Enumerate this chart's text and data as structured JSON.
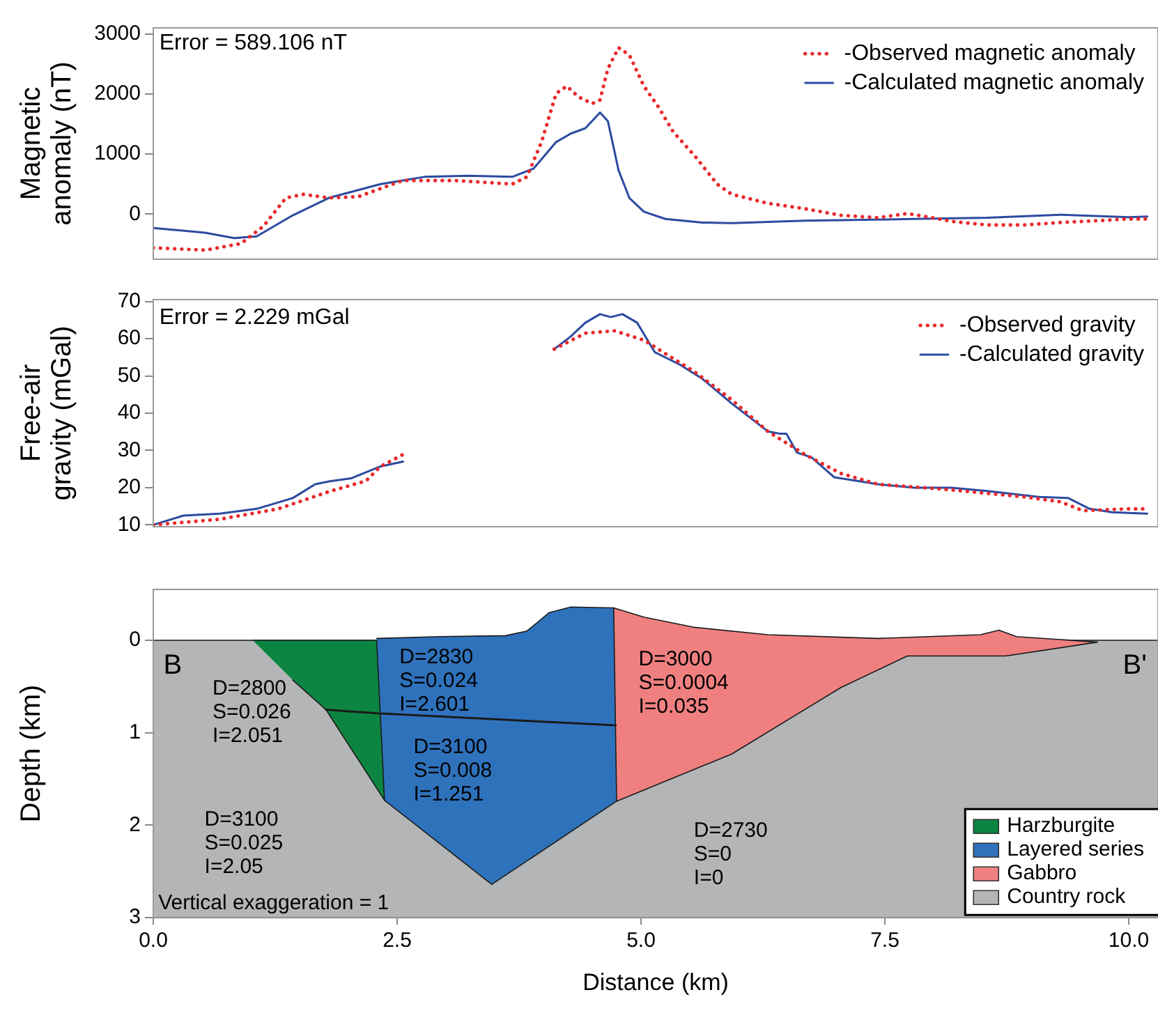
{
  "chart_data": [
    {
      "type": "line",
      "ylabel": "Magnetic anomaly (nT)",
      "xlim": [
        0,
        10.3
      ],
      "ylim": [
        -750,
        3100
      ],
      "yticks": [
        0,
        1000,
        2000,
        3000
      ],
      "tick_labels": "y",
      "grid": false,
      "legend": "top right",
      "annotations": [
        "Error = 589.106 nT"
      ],
      "series": [
        {
          "name": "-Observed magnetic anomaly",
          "color": "#e8292b",
          "line_style": "dotted",
          "x": [
            0,
            0.53,
            0.9,
            1.13,
            1.36,
            1.54,
            1.8,
            2.1,
            2.56,
            3.08,
            3.68,
            3.83,
            3.98,
            4.13,
            4.24,
            4.36,
            4.5,
            4.58,
            4.66,
            4.77,
            4.88,
            5.03,
            5.18,
            5.33,
            5.55,
            5.78,
            5.93,
            6.3,
            6.68,
            7.05,
            7.43,
            7.73,
            7.95,
            8.18,
            8.55,
            8.93,
            9.3,
            9.68,
            10.0,
            10.19
          ],
          "values": [
            -560,
            -600,
            -490,
            -200,
            270,
            330,
            270,
            290,
            560,
            560,
            500,
            620,
            1200,
            2010,
            2130,
            1950,
            1840,
            1900,
            2420,
            2770,
            2650,
            2130,
            1780,
            1370,
            970,
            500,
            330,
            180,
            90,
            -20,
            -60,
            10,
            -50,
            -120,
            -180,
            -180,
            -140,
            -110,
            -80,
            -80
          ]
        },
        {
          "name": "-Calculated magnetic anomaly",
          "color": "#2b4ba0",
          "line_style": "solid",
          "x": [
            0,
            0.53,
            0.83,
            1.06,
            1.43,
            1.8,
            2.33,
            2.78,
            3.23,
            3.68,
            3.9,
            4.13,
            4.28,
            4.43,
            4.58,
            4.66,
            4.77,
            4.88,
            5.03,
            5.25,
            5.63,
            5.93,
            6.68,
            7.8,
            8.55,
            9.3,
            10.0,
            10.19
          ],
          "values": [
            -230,
            -310,
            -400,
            -370,
            -20,
            270,
            500,
            620,
            640,
            620,
            760,
            1200,
            1340,
            1430,
            1690,
            1550,
            730,
            270,
            40,
            -80,
            -140,
            -150,
            -110,
            -80,
            -60,
            -10,
            -50,
            -40
          ]
        }
      ]
    },
    {
      "type": "line",
      "ylabel": "Free-air gravity (mGal)",
      "xlim": [
        0,
        10.3
      ],
      "ylim": [
        9.5,
        70.5
      ],
      "yticks": [
        10,
        20,
        30,
        40,
        50,
        60,
        70
      ],
      "tick_labels": "y",
      "grid": false,
      "legend": "top right",
      "annotations": [
        "Error = 2.229 mGal"
      ],
      "series": [
        {
          "name": "-Observed gravity",
          "color": "#e8292b",
          "line_style": "dotted",
          "x": [
            0,
            0.68,
            1.28,
            1.81,
            2.18,
            2.33,
            2.56,
            3.4,
            4.11,
            4.43,
            4.73,
            5.03,
            5.55,
            5.93,
            6.3,
            6.68,
            7.05,
            7.43,
            8.18,
            8.93,
            9.3,
            9.53,
            10.0,
            10.19
          ],
          "values": [
            10,
            11.5,
            14.3,
            19,
            21.8,
            25.7,
            28.9,
            null,
            57.2,
            61.5,
            62.1,
            59.6,
            51.1,
            43.6,
            35.1,
            28.9,
            23.8,
            20.9,
            19.4,
            17.5,
            16.2,
            13.8,
            14.3,
            14.3
          ]
        },
        {
          "name": "-Calculated gravity",
          "color": "#2b4ba0",
          "line_style": "solid",
          "x": [
            0,
            0.31,
            0.68,
            1.06,
            1.43,
            1.66,
            1.81,
            2.03,
            2.33,
            2.56,
            3.4,
            4.11,
            4.28,
            4.43,
            4.58,
            4.69,
            4.81,
            4.96,
            5.14,
            5.4,
            5.63,
            5.93,
            6.3,
            6.42,
            6.49,
            6.6,
            6.75,
            6.98,
            7.43,
            7.8,
            8.18,
            8.55,
            9.08,
            9.38,
            9.6,
            9.83,
            10.19
          ],
          "values": [
            10,
            12.5,
            13,
            14.3,
            17.2,
            20.9,
            21.7,
            22.5,
            25.7,
            27,
            null,
            57.2,
            60.6,
            64.3,
            66.6,
            65.8,
            66.6,
            64.3,
            56.4,
            53,
            49.2,
            42.6,
            35.1,
            34.5,
            34.5,
            29.4,
            28.1,
            22.8,
            20.9,
            20,
            20,
            19.1,
            17.5,
            17.2,
            14.3,
            13.4,
            13
          ]
        }
      ]
    },
    {
      "type": "area",
      "xlabel": "Distance (km)",
      "ylabel": "Depth (km)",
      "xlim": [
        0,
        10.3
      ],
      "ylim": [
        3,
        -0.55
      ],
      "xticks": [
        {
          "value": 0,
          "label": "0.0"
        },
        2.5,
        {
          "value": 5,
          "label": "5.0"
        },
        7.5,
        {
          "value": 10,
          "label": "10.0"
        }
      ],
      "yticks": [
        0,
        1,
        2,
        3
      ],
      "grid": false,
      "legend": "bottom right",
      "annotations": [
        "Vertical exaggeration = 1",
        "B",
        "B'",
        "D=2800\nS=0.026\nI=2.051",
        "D=3100\nS=0.025\nI=2.05",
        "D=2830\nS=0.024\nI=2.601",
        "D=3100\nS=0.008\nI=1.251",
        "D=3000\nS=0.0004\nI=0.035",
        "D=2730\nS=0\nI=0"
      ],
      "series": [
        {
          "type": "line",
          "color": "#1a1a1a",
          "x": [
            1.77,
            2.29,
            4.74
          ],
          "values": [
            0.75,
            0.79,
            0.92
          ]
        },
        {
          "name": "Harzburgite",
          "color": "#0c8542",
          "x": [
            1.02,
            2.29,
            2.37,
            1.77,
            1.43
          ],
          "values": [
            0,
            0,
            1.73,
            0.75,
            0.43
          ]
        },
        {
          "name": "Layered series",
          "color": "#2f72bc",
          "x": [
            2.29,
            2.93,
            3.61,
            3.83,
            4.06,
            4.28,
            4.72,
            4.75,
            3.47,
            2.37
          ],
          "values": [
            -0.02,
            -0.04,
            -0.05,
            -0.1,
            -0.3,
            -0.36,
            -0.35,
            1.74,
            2.64,
            1.73
          ]
        },
        {
          "name": "Gabbro",
          "color": "#f08080",
          "x": [
            4.72,
            5.03,
            5.55,
            6.3,
            7.43,
            8.48,
            8.67,
            8.85,
            9.68,
            8.74,
            7.73,
            7.05,
            5.93,
            4.75
          ],
          "values": [
            -0.35,
            -0.25,
            -0.14,
            -0.06,
            -0.02,
            -0.06,
            -0.11,
            -0.04,
            0.02,
            0.17,
            0.17,
            0.51,
            1.23,
            1.74
          ]
        },
        {
          "name": "Country rock",
          "color": "#b3b5b6",
          "x": [
            0,
            10.3,
            10.3,
            0
          ],
          "values": [
            0,
            0,
            3,
            3
          ]
        }
      ]
    }
  ]
}
